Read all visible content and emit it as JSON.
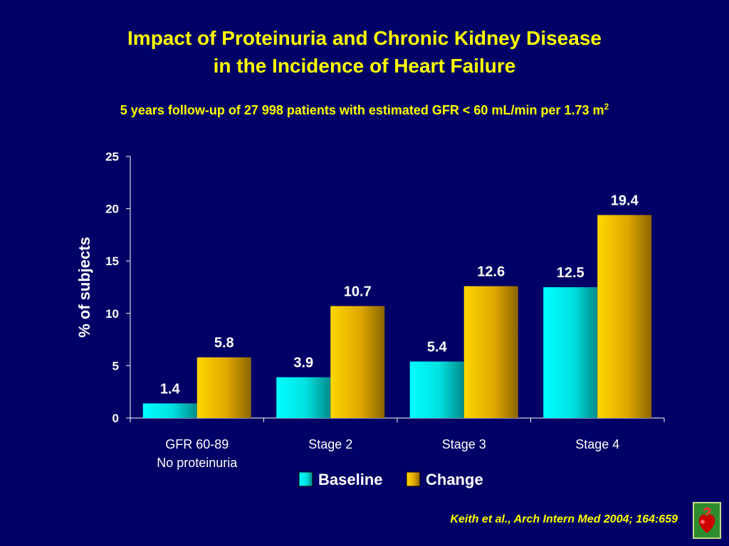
{
  "slide": {
    "title_line1": "Impact of Proteinuria and Chronic Kidney Disease",
    "title_line2": "in the Incidence of Heart Failure",
    "subtitle": "5 years follow-up of 27 998 patients with estimated GFR < 60 mL/min per 1.73 m",
    "subtitle_sup": "2",
    "citation": "Keith et al., Arch Intern Med 2004; 164:659"
  },
  "colors": {
    "background": "#000066",
    "title": "#ffff00",
    "baseline": "#00e8e8",
    "change": "#e6b800",
    "text": "#ffffff"
  },
  "chart_data": {
    "type": "bar",
    "ylabel": "% of subjects",
    "xlabel": "",
    "ylim": [
      0,
      25
    ],
    "yticks": [
      0,
      5,
      10,
      15,
      20,
      25
    ],
    "categories": [
      [
        "GFR 60-89",
        "No proteinuria"
      ],
      [
        "Stage 2"
      ],
      [
        "Stage 3"
      ],
      [
        "Stage 4"
      ]
    ],
    "series": [
      {
        "name": "Baseline",
        "values": [
          1.4,
          3.9,
          5.4,
          12.5
        ]
      },
      {
        "name": "Change",
        "values": [
          5.8,
          10.7,
          12.6,
          19.4
        ]
      }
    ],
    "data_labels": true,
    "legend": "bottom",
    "grid": false
  }
}
